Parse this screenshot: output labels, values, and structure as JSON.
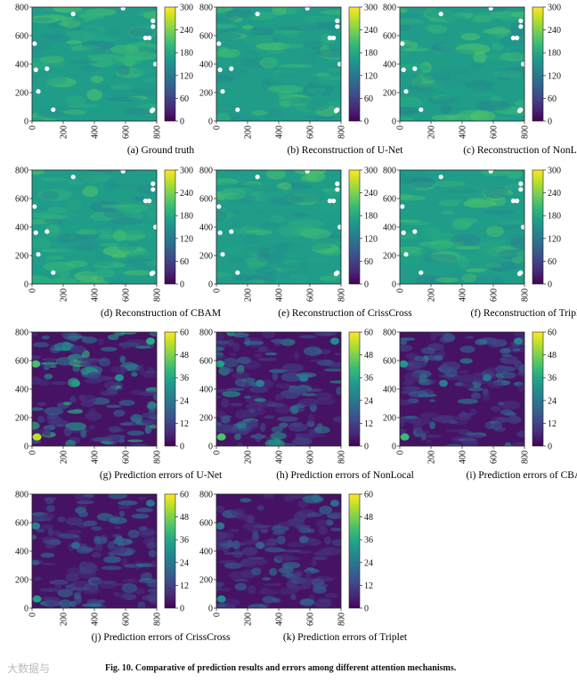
{
  "figure_caption": {
    "label": "Fig. 10.",
    "text": "Comparative of prediction results and errors among different attention mechanisms."
  },
  "watermark": "大数据与",
  "colormaps": {
    "viridis": [
      "#440154",
      "#482878",
      "#3e4989",
      "#31688e",
      "#26828e",
      "#1f9e89",
      "#35b779",
      "#6ece58",
      "#b5de2b",
      "#fde725"
    ]
  },
  "chart_data": [
    {
      "type": "heatmap",
      "title": "(a) Ground truth",
      "kind": "field",
      "xticks": [
        "0",
        "200",
        "400",
        "600",
        "800"
      ],
      "yticks": [
        "0",
        "200",
        "400",
        "600",
        "800"
      ],
      "xlim": [
        0,
        800
      ],
      "ylim": [
        0,
        800
      ],
      "colorbar": {
        "min": 0,
        "max": 300,
        "ticks": [
          "0",
          "60",
          "120",
          "180",
          "240",
          "300"
        ]
      }
    },
    {
      "type": "heatmap",
      "title": "(b) Reconstruction of U-Net",
      "kind": "field",
      "xticks": [
        "0",
        "200",
        "400",
        "600",
        "800"
      ],
      "yticks": [
        "0",
        "200",
        "400",
        "600",
        "800"
      ],
      "xlim": [
        0,
        800
      ],
      "ylim": [
        0,
        800
      ],
      "colorbar": {
        "min": 0,
        "max": 300,
        "ticks": [
          "0",
          "60",
          "120",
          "180",
          "240",
          "300"
        ]
      }
    },
    {
      "type": "heatmap",
      "title": "(c) Reconstruction of NonLocal",
      "kind": "field",
      "xticks": [
        "0",
        "200",
        "400",
        "600",
        "800"
      ],
      "yticks": [
        "0",
        "200",
        "400",
        "600",
        "800"
      ],
      "xlim": [
        0,
        800
      ],
      "ylim": [
        0,
        800
      ],
      "colorbar": {
        "min": 0,
        "max": 300,
        "ticks": [
          "0",
          "60",
          "120",
          "180",
          "240",
          "300"
        ]
      }
    },
    {
      "type": "heatmap",
      "title": "(d) Reconstruction of CBAM",
      "kind": "field",
      "xticks": [
        "0",
        "200",
        "400",
        "600",
        "800"
      ],
      "yticks": [
        "0",
        "200",
        "400",
        "600",
        "800"
      ],
      "xlim": [
        0,
        800
      ],
      "ylim": [
        0,
        800
      ],
      "colorbar": {
        "min": 0,
        "max": 300,
        "ticks": [
          "0",
          "60",
          "120",
          "180",
          "240",
          "300"
        ]
      }
    },
    {
      "type": "heatmap",
      "title": "(e) Reconstruction of CrissCross",
      "kind": "field",
      "xticks": [
        "0",
        "200",
        "400",
        "600",
        "800"
      ],
      "yticks": [
        "0",
        "200",
        "400",
        "600",
        "800"
      ],
      "xlim": [
        0,
        800
      ],
      "ylim": [
        0,
        800
      ],
      "colorbar": {
        "min": 0,
        "max": 300,
        "ticks": [
          "0",
          "60",
          "120",
          "180",
          "240",
          "300"
        ]
      }
    },
    {
      "type": "heatmap",
      "title": "(f) Reconstruction of Triplet",
      "kind": "field",
      "xticks": [
        "0",
        "200",
        "400",
        "600",
        "800"
      ],
      "yticks": [
        "0",
        "200",
        "400",
        "600",
        "800"
      ],
      "xlim": [
        0,
        800
      ],
      "ylim": [
        0,
        800
      ],
      "colorbar": {
        "min": 0,
        "max": 300,
        "ticks": [
          "0",
          "60",
          "120",
          "180",
          "240",
          "300"
        ]
      }
    },
    {
      "type": "heatmap",
      "title": "(g) Prediction errors of U-Net",
      "kind": "error",
      "intensity": 1.0,
      "xticks": [
        "0",
        "200",
        "400",
        "600",
        "800"
      ],
      "yticks": [
        "0",
        "200",
        "400",
        "600",
        "800"
      ],
      "xlim": [
        0,
        800
      ],
      "ylim": [
        0,
        800
      ],
      "colorbar": {
        "min": 0,
        "max": 60,
        "ticks": [
          "0",
          "12",
          "24",
          "36",
          "48",
          "60"
        ]
      }
    },
    {
      "type": "heatmap",
      "title": "(h) Prediction errors of NonLocal",
      "kind": "error",
      "intensity": 0.8,
      "xticks": [
        "0",
        "200",
        "400",
        "600",
        "800"
      ],
      "yticks": [
        "0",
        "200",
        "400",
        "600",
        "800"
      ],
      "xlim": [
        0,
        800
      ],
      "ylim": [
        0,
        800
      ],
      "colorbar": {
        "min": 0,
        "max": 60,
        "ticks": [
          "0",
          "12",
          "24",
          "36",
          "48",
          "60"
        ]
      }
    },
    {
      "type": "heatmap",
      "title": "(i) Prediction errors of CBAM",
      "kind": "error",
      "intensity": 0.75,
      "xticks": [
        "0",
        "200",
        "400",
        "600",
        "800"
      ],
      "yticks": [
        "0",
        "200",
        "400",
        "600",
        "800"
      ],
      "xlim": [
        0,
        800
      ],
      "ylim": [
        0,
        800
      ],
      "colorbar": {
        "min": 0,
        "max": 60,
        "ticks": [
          "0",
          "12",
          "24",
          "36",
          "48",
          "60"
        ]
      }
    },
    {
      "type": "heatmap",
      "title": "(j) Prediction errors of CrissCross",
      "kind": "error",
      "intensity": 0.6,
      "xticks": [
        "0",
        "200",
        "400",
        "600",
        "800"
      ],
      "yticks": [
        "0",
        "200",
        "400",
        "600",
        "800"
      ],
      "xlim": [
        0,
        800
      ],
      "ylim": [
        0,
        800
      ],
      "colorbar": {
        "min": 0,
        "max": 60,
        "ticks": [
          "0",
          "12",
          "24",
          "36",
          "48",
          "60"
        ]
      }
    },
    {
      "type": "heatmap",
      "title": "(k) Prediction errors of Triplet",
      "kind": "error",
      "intensity": 0.55,
      "xticks": [
        "0",
        "200",
        "400",
        "600",
        "800"
      ],
      "yticks": [
        "0",
        "200",
        "400",
        "600",
        "800"
      ],
      "xlim": [
        0,
        800
      ],
      "ylim": [
        0,
        800
      ],
      "colorbar": {
        "min": 0,
        "max": 60,
        "ticks": [
          "0",
          "12",
          "24",
          "36",
          "48",
          "60"
        ]
      }
    }
  ]
}
